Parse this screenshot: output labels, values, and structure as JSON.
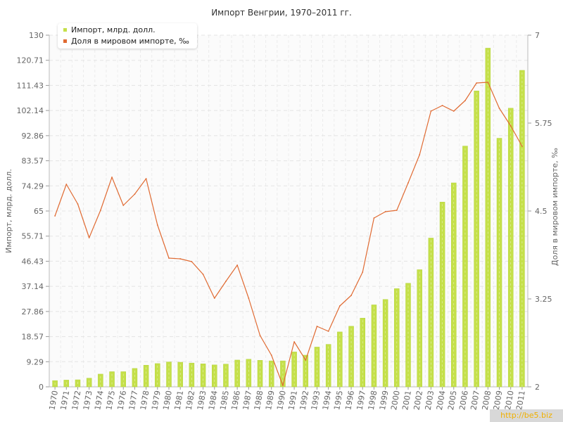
{
  "chart_data": {
    "type": "bar",
    "title": "Импорт Венгрии, 1970–2011 гг.",
    "categories": [
      "1970",
      "1971",
      "1972",
      "1973",
      "1974",
      "1975",
      "1976",
      "1977",
      "1978",
      "1979",
      "1980",
      "1981",
      "1982",
      "1983",
      "1984",
      "1985",
      "1986",
      "1987",
      "1988",
      "1989",
      "1990",
      "1991",
      "1992",
      "1993",
      "1994",
      "1995",
      "1996",
      "1997",
      "1998",
      "1999",
      "2000",
      "2001",
      "2002",
      "2003",
      "2004",
      "2005",
      "2006",
      "2007",
      "2008",
      "2009",
      "2010",
      "2011"
    ],
    "series": [
      {
        "name": "Импорт, млрд. долл.",
        "type": "bar",
        "axis": "left",
        "color": "#c5e04a",
        "values": [
          2.3,
          2.5,
          2.6,
          3.2,
          4.7,
          5.6,
          5.6,
          6.8,
          8.0,
          8.6,
          9.2,
          9.1,
          8.8,
          8.5,
          8.1,
          8.4,
          9.9,
          10.2,
          9.8,
          9.6,
          9.6,
          12.9,
          11.7,
          14.7,
          15.7,
          20.3,
          22.4,
          25.4,
          30.3,
          32.3,
          36.3,
          38.3,
          43.3,
          55.0,
          68.3,
          75.4,
          89.0,
          109.4,
          125.2,
          91.9,
          103.0,
          117.0
        ]
      },
      {
        "name": "Доля в мировом импорте, ‰",
        "type": "line",
        "axis": "right",
        "color": "#e06a32",
        "values": [
          4.43,
          4.88,
          4.6,
          4.12,
          4.51,
          4.98,
          4.58,
          4.74,
          4.96,
          4.3,
          3.83,
          3.82,
          3.78,
          3.6,
          3.26,
          3.5,
          3.73,
          3.26,
          2.73,
          2.45,
          2.02,
          2.64,
          2.38,
          2.86,
          2.79,
          3.15,
          3.3,
          3.63,
          4.4,
          4.49,
          4.51,
          4.9,
          5.3,
          5.92,
          6.0,
          5.92,
          6.07,
          6.32,
          6.33,
          5.96,
          5.71,
          5.42
        ]
      }
    ],
    "ylabel": "Импорт, млрд. долл.",
    "y2label": "Доля в мировом импорте, ‰",
    "ylim": [
      0,
      130
    ],
    "y2lim": [
      2,
      7
    ],
    "yticks": [
      "0",
      "9.29",
      "18.57",
      "27.86",
      "37.14",
      "46.43",
      "55.71",
      "65",
      "74.29",
      "83.57",
      "92.86",
      "102.14",
      "111.43",
      "120.71",
      "130"
    ],
    "y2ticks": [
      "2",
      "3.25",
      "4.5",
      "5.75",
      "7"
    ],
    "grid": true,
    "legend_position": "top-left"
  },
  "watermark": "http://be5.biz"
}
